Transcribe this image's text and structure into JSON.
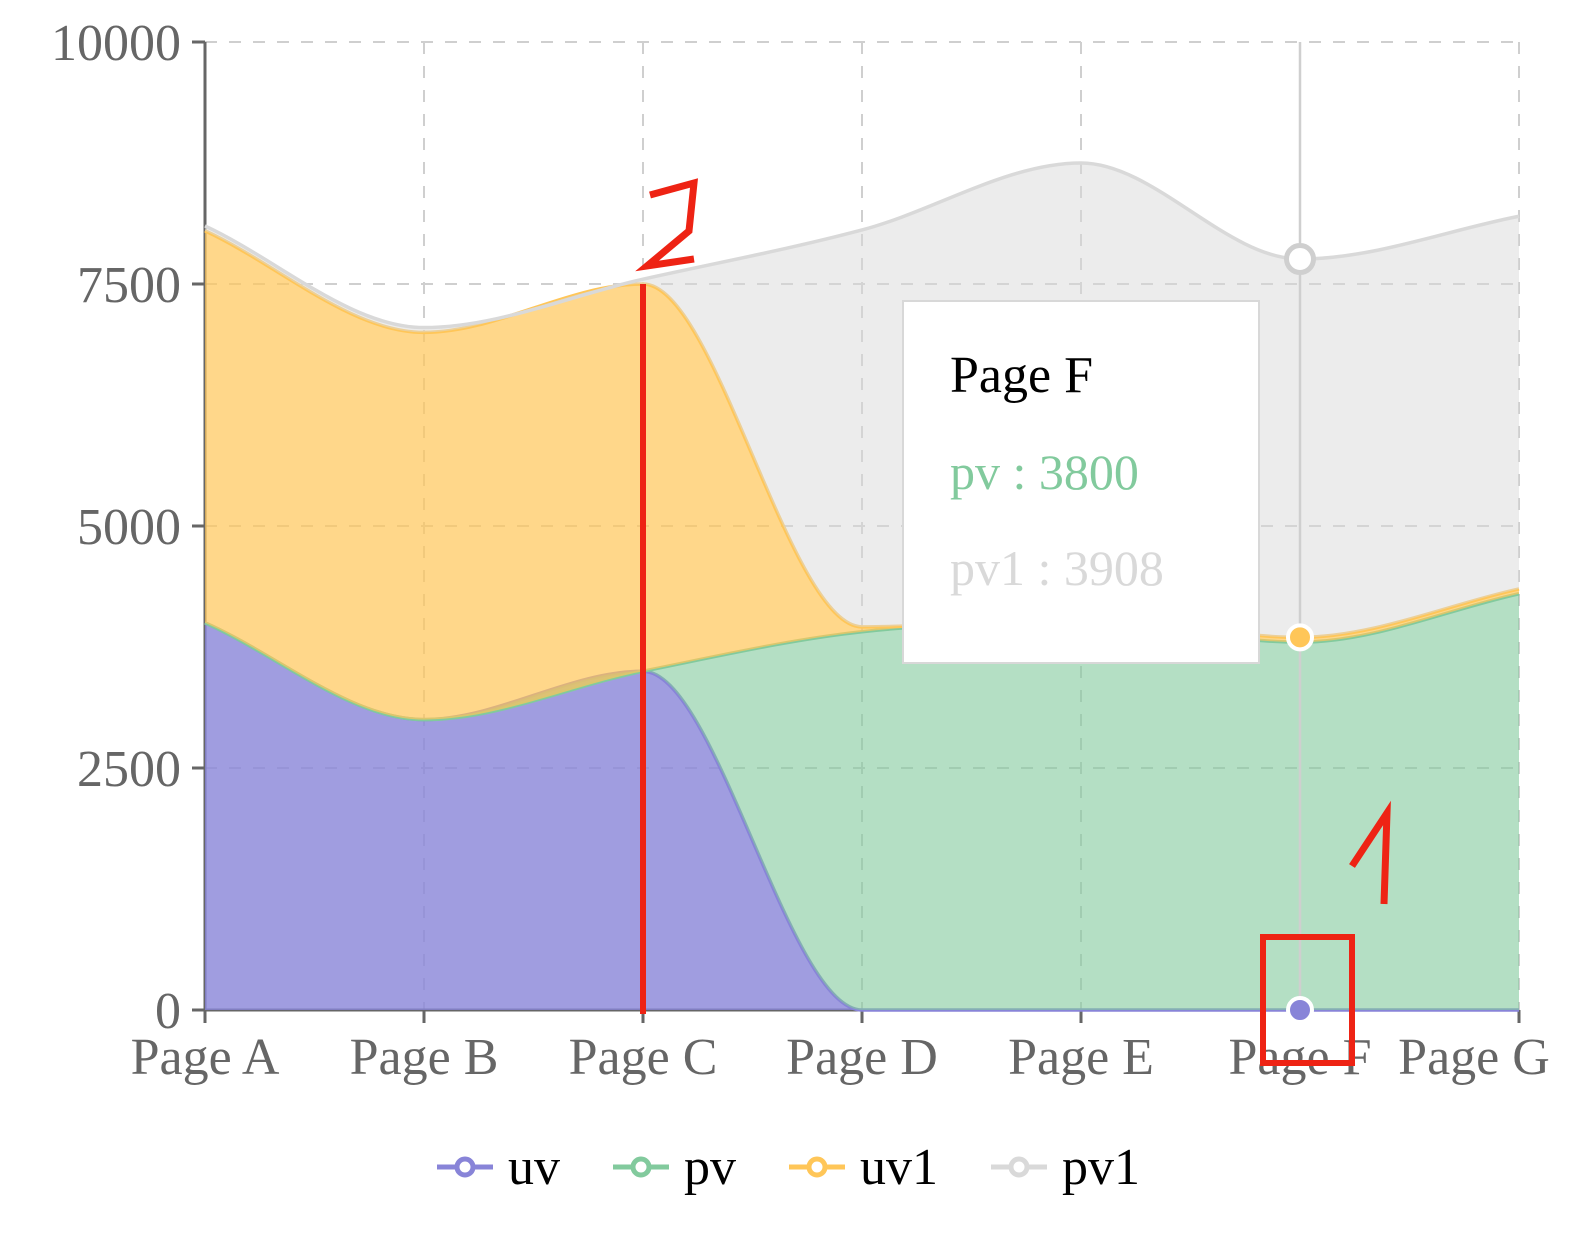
{
  "chart_data": {
    "type": "area",
    "variant": "stacked, smooth monotone curves",
    "background": "#ffffff",
    "categories": [
      "Page A",
      "Page B",
      "Page C",
      "Page D",
      "Page E",
      "Page F",
      "Page G"
    ],
    "series": [
      {
        "name": "uv",
        "color": "#8884d8",
        "fill_opacity": 0.8,
        "values": [
          4000,
          3000,
          3500,
          0,
          0,
          0,
          0
        ]
      },
      {
        "name": "pv",
        "color": "#82ca9d",
        "fill_opacity": 0.6,
        "values": [
          0,
          0,
          0,
          3908,
          4000,
          3800,
          4300
        ]
      },
      {
        "name": "uv1",
        "color": "#ffc658",
        "fill_opacity": 0.7,
        "values": [
          4050,
          4000,
          4000,
          50,
          50,
          50,
          50
        ]
      },
      {
        "name": "pv1",
        "color": "#d9d9d9",
        "fill_opacity": 0.5,
        "values": [
          50,
          50,
          50,
          4100,
          4700,
          3908,
          3850
        ]
      }
    ],
    "y_ticks": [
      0,
      2500,
      5000,
      7500,
      10000
    ],
    "y_max": 10000,
    "grid": "dashed",
    "axis_color": "#666666",
    "legend_position": "bottom",
    "active_category": "Page F",
    "active_dots": [
      "uv",
      "uv1",
      "pv1"
    ],
    "cursor_line_color": "#cfcfcf"
  },
  "tooltip": {
    "title": "Page F",
    "rows": [
      {
        "series": "pv",
        "text": "pv : 3800",
        "color": "#82ca9d"
      },
      {
        "series": "pv1",
        "text": "pv1 : 3908",
        "color": "#d9d9d9"
      }
    ]
  },
  "legend": {
    "items": [
      {
        "label": "uv",
        "color": "#8884d8"
      },
      {
        "label": "pv",
        "color": "#82ca9d"
      },
      {
        "label": "uv1",
        "color": "#ffc658"
      },
      {
        "label": "pv1",
        "color": "#d9d9d9"
      }
    ]
  },
  "annotations": {
    "color": "#ee2314",
    "items": [
      {
        "id": "marker-2",
        "type": "handwritten-digit",
        "text": "2",
        "location": "above Page C, at top of red vertical line"
      },
      {
        "id": "red-vline",
        "type": "vertical-line",
        "category": "Page C",
        "value_from": 0,
        "value_to": 7500
      },
      {
        "id": "marker-1",
        "type": "handwritten-digit",
        "text": "1",
        "location": "above the uv active dot near Page F"
      },
      {
        "id": "red-box",
        "type": "rectangle",
        "category": "Page F",
        "highlights": "uv active dot at value 0"
      }
    ]
  }
}
